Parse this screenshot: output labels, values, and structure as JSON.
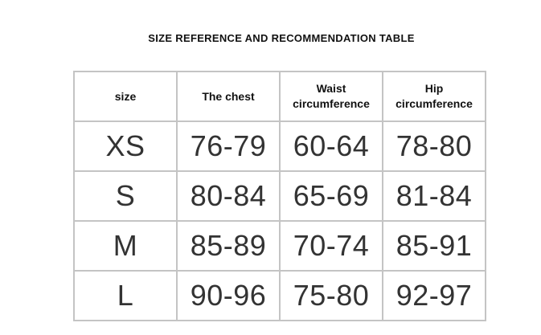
{
  "title": "SIZE REFERENCE AND RECOMMENDATION TABLE",
  "headers": [
    "size",
    "The chest",
    "Waist\ncircumference",
    "Hip\ncircumference"
  ],
  "header_lines": [
    [
      "size"
    ],
    [
      "The chest"
    ],
    [
      "Waist",
      "circumference"
    ],
    [
      "Hip",
      "circumference"
    ]
  ],
  "rows": [
    [
      "XS",
      "76-79",
      "60-64",
      "78-80"
    ],
    [
      "S",
      "80-84",
      "65-69",
      "81-84"
    ],
    [
      "M",
      "85-89",
      "70-74",
      "85-91"
    ],
    [
      "L",
      "90-96",
      "75-80",
      "92-97"
    ]
  ]
}
